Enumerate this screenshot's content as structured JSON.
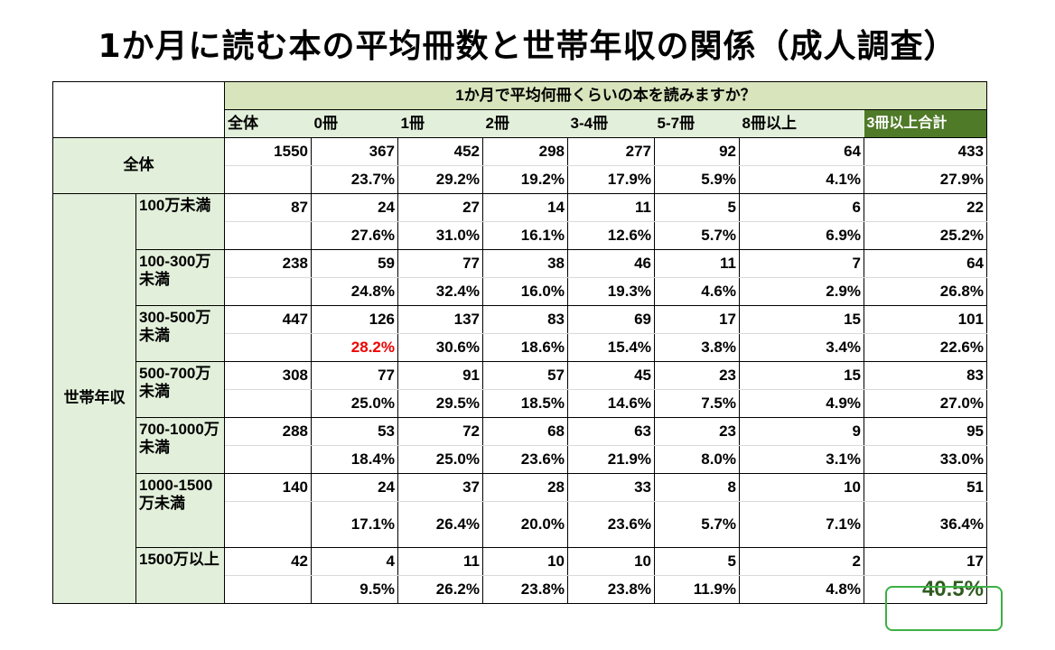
{
  "title": "1か月に読む本の平均冊数と世帯年収の関係（成人調査）",
  "question": "1か月で平均何冊くらいの本を読みますか？",
  "columns": [
    "全体",
    "0冊",
    "1冊",
    "2冊",
    "3-4冊",
    "5-7冊",
    "8冊以上",
    "3冊以上合計"
  ],
  "overall": {
    "label": "全体",
    "counts": [
      "1550",
      "367",
      "452",
      "298",
      "277",
      "92",
      "64",
      "433"
    ],
    "pcts": [
      "",
      "23.7%",
      "29.2%",
      "19.2%",
      "17.9%",
      "5.9%",
      "4.1%",
      "27.9%"
    ]
  },
  "group_label": "世帯年収",
  "rows": [
    {
      "label": "100万未満",
      "counts": [
        "87",
        "24",
        "27",
        "14",
        "11",
        "5",
        "6",
        "22"
      ],
      "pcts": [
        "",
        "27.6%",
        "31.0%",
        "16.1%",
        "12.6%",
        "5.7%",
        "6.9%",
        "25.2%"
      ]
    },
    {
      "label": "100-300万未満",
      "counts": [
        "238",
        "59",
        "77",
        "38",
        "46",
        "11",
        "7",
        "64"
      ],
      "pcts": [
        "",
        "24.8%",
        "32.4%",
        "16.0%",
        "19.3%",
        "4.6%",
        "2.9%",
        "26.8%"
      ]
    },
    {
      "label": "300-500万未満",
      "counts": [
        "447",
        "126",
        "137",
        "83",
        "69",
        "17",
        "15",
        "101"
      ],
      "pcts": [
        "",
        "28.2%",
        "30.6%",
        "18.6%",
        "15.4%",
        "3.8%",
        "3.4%",
        "22.6%"
      ]
    },
    {
      "label": "500-700万未満",
      "counts": [
        "308",
        "77",
        "91",
        "57",
        "45",
        "23",
        "15",
        "83"
      ],
      "pcts": [
        "",
        "25.0%",
        "29.5%",
        "18.5%",
        "14.6%",
        "7.5%",
        "4.9%",
        "27.0%"
      ]
    },
    {
      "label": "700-1000万未満",
      "counts": [
        "288",
        "53",
        "72",
        "68",
        "63",
        "23",
        "9",
        "95"
      ],
      "pcts": [
        "",
        "18.4%",
        "25.0%",
        "23.6%",
        "21.9%",
        "8.0%",
        "3.1%",
        "33.0%"
      ]
    },
    {
      "label": "1000-1500万未満",
      "counts": [
        "140",
        "24",
        "37",
        "28",
        "33",
        "8",
        "10",
        "51"
      ],
      "pcts": [
        "",
        "17.1%",
        "26.4%",
        "20.0%",
        "23.6%",
        "5.7%",
        "7.1%",
        "36.4%"
      ]
    },
    {
      "label": "1500万以上",
      "counts": [
        "42",
        "4",
        "11",
        "10",
        "10",
        "5",
        "2",
        "17"
      ],
      "pcts": [
        "",
        "9.5%",
        "26.2%",
        "23.8%",
        "23.8%",
        "11.9%",
        "4.8%",
        "40.5%"
      ]
    }
  ],
  "colors": {
    "header_green": "#d8e4bc",
    "label_green": "#e2efda",
    "sum_header": "#4f7a28",
    "highlight_red": "#ee0000",
    "callout_border": "#3cb043"
  },
  "chart_data": {
    "type": "table",
    "title": "1か月に読む本の平均冊数と世帯年収の関係（成人調査）",
    "column_group": "1か月で平均何冊くらいの本を読みますか？",
    "columns": [
      "全体",
      "0冊",
      "1冊",
      "2冊",
      "3-4冊",
      "5-7冊",
      "8冊以上",
      "3冊以上合計"
    ],
    "row_group": "世帯年収",
    "rows": [
      {
        "name": "全体",
        "counts": [
          1550,
          367,
          452,
          298,
          277,
          92,
          64,
          433
        ],
        "percent": [
          null,
          23.7,
          29.2,
          19.2,
          17.9,
          5.9,
          4.1,
          27.9
        ]
      },
      {
        "name": "100万未満",
        "counts": [
          87,
          24,
          27,
          14,
          11,
          5,
          6,
          22
        ],
        "percent": [
          null,
          27.6,
          31.0,
          16.1,
          12.6,
          5.7,
          6.9,
          25.2
        ]
      },
      {
        "name": "100-300万未満",
        "counts": [
          238,
          59,
          77,
          38,
          46,
          11,
          7,
          64
        ],
        "percent": [
          null,
          24.8,
          32.4,
          16.0,
          19.3,
          4.6,
          2.9,
          26.8
        ]
      },
      {
        "name": "300-500万未満",
        "counts": [
          447,
          126,
          137,
          83,
          69,
          17,
          15,
          101
        ],
        "percent": [
          null,
          28.2,
          30.6,
          18.6,
          15.4,
          3.8,
          3.4,
          22.6
        ]
      },
      {
        "name": "500-700万未満",
        "counts": [
          308,
          77,
          91,
          57,
          45,
          23,
          15,
          83
        ],
        "percent": [
          null,
          25.0,
          29.5,
          18.5,
          14.6,
          7.5,
          4.9,
          27.0
        ]
      },
      {
        "name": "700-1000万未満",
        "counts": [
          288,
          53,
          72,
          68,
          63,
          23,
          9,
          95
        ],
        "percent": [
          null,
          18.4,
          25.0,
          23.6,
          21.9,
          8.0,
          3.1,
          33.0
        ]
      },
      {
        "name": "1000-1500万未満",
        "counts": [
          140,
          24,
          37,
          28,
          33,
          8,
          10,
          51
        ],
        "percent": [
          null,
          17.1,
          26.4,
          20.0,
          23.6,
          5.7,
          7.1,
          36.4
        ]
      },
      {
        "name": "1500万以上",
        "counts": [
          42,
          4,
          11,
          10,
          10,
          5,
          2,
          17
        ],
        "percent": [
          null,
          9.5,
          26.2,
          23.8,
          23.8,
          11.9,
          4.8,
          40.5
        ]
      }
    ],
    "highlights": [
      {
        "row": "300-500万未満",
        "column": "0冊",
        "style": "red text"
      },
      {
        "row": "1500万以上",
        "column": "3冊以上合計",
        "style": "green circled"
      }
    ]
  }
}
